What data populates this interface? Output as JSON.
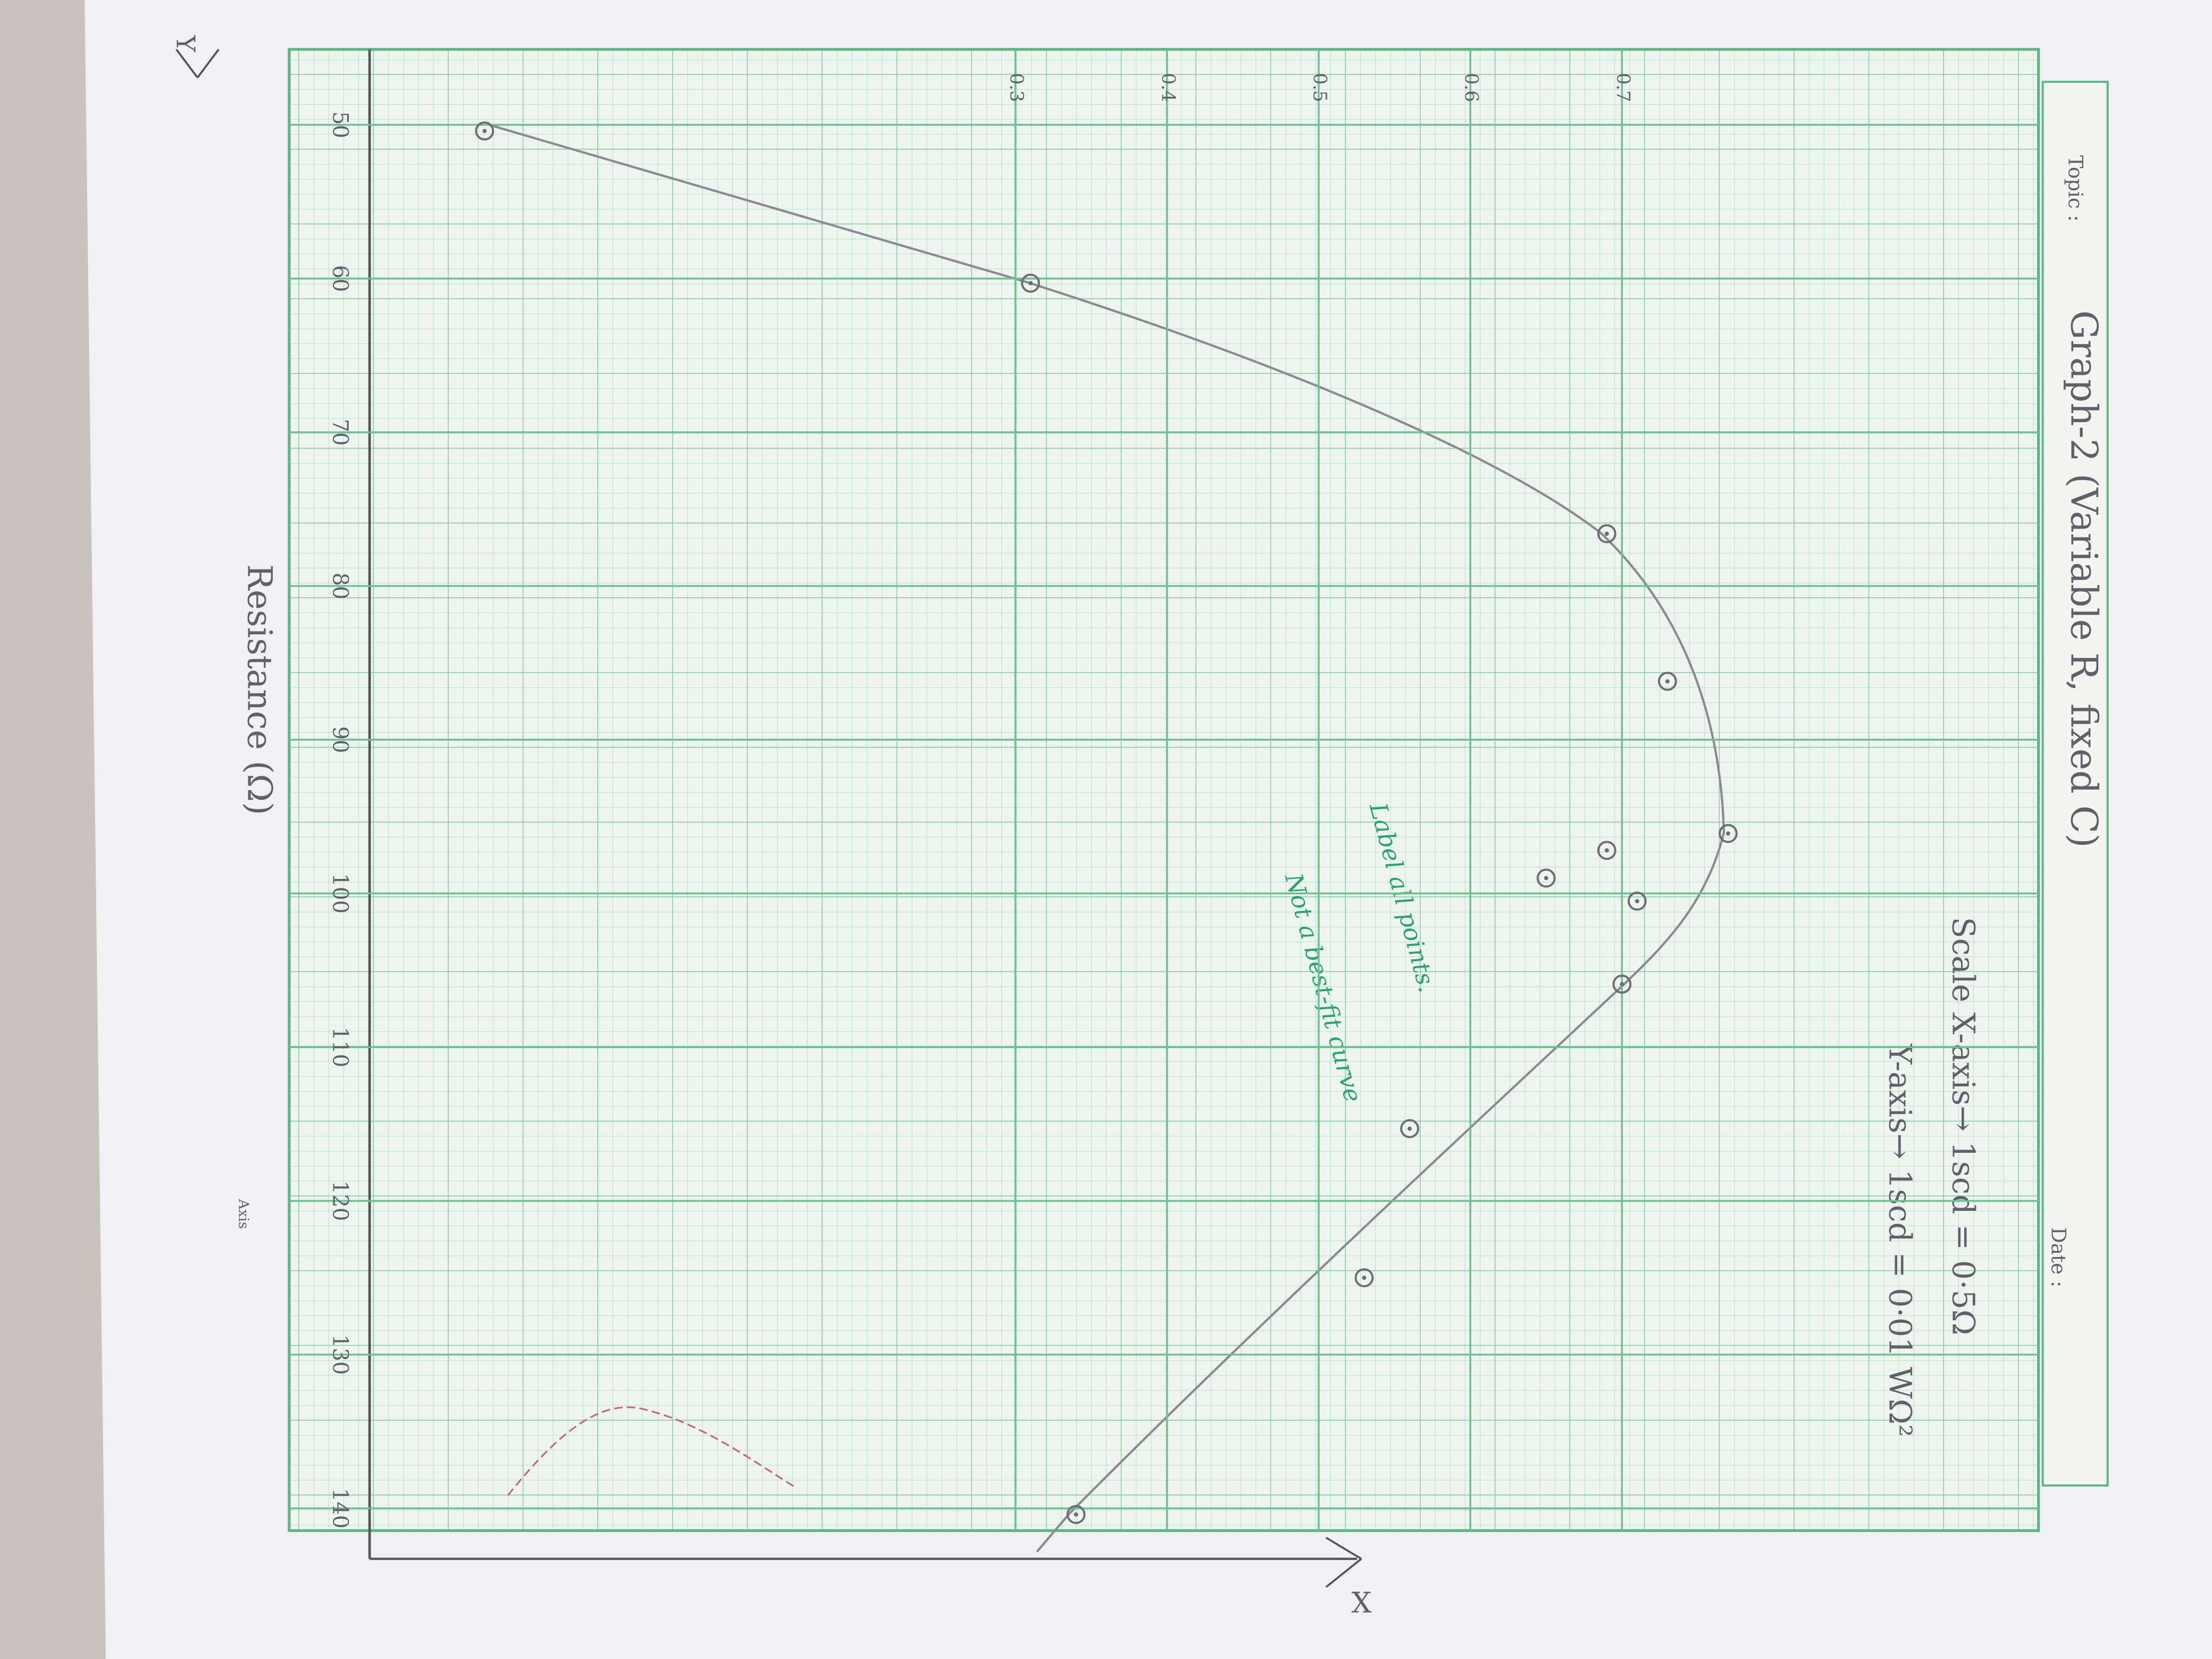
{
  "page": {
    "topic": "Topic :",
    "date": "Date :",
    "scale_x": "Scale X-axis→ 1scd = 0·5Ω",
    "scale_y": "Y-axis→ 1scd = 0·01 WΩ²",
    "axis_note": "Axis",
    "x_letter": "X",
    "y_letter": "Y"
  },
  "chart_data": {
    "type": "scatter",
    "title": "Graph-2 (Variable R, fixed C)",
    "xlabel": "Resistance (Ω)",
    "annotations": [
      "Label all points.",
      "Not a best-fit curve"
    ],
    "x": [
      50.4,
      60.3,
      76.6,
      86.2,
      96.1,
      97.2,
      99,
      100.5,
      105.9,
      115.3,
      125,
      140.4
    ],
    "series": [
      {
        "color": "#6d6d72",
        "values": [
          -0.05,
          0.31,
          0.69,
          0.73,
          0.77,
          0.69,
          0.65,
          0.71,
          0.7,
          0.56,
          0.53,
          0.34
        ]
      }
    ],
    "xlim": [
      45,
      142
    ],
    "xticks": [
      50,
      60,
      70,
      80,
      90,
      100,
      110,
      120,
      130,
      140
    ],
    "ylim": [
      -0.15,
      0.97
    ],
    "yticks": [
      0.3,
      0.4,
      0.5,
      0.6,
      0.7
    ],
    "grid": true
  }
}
